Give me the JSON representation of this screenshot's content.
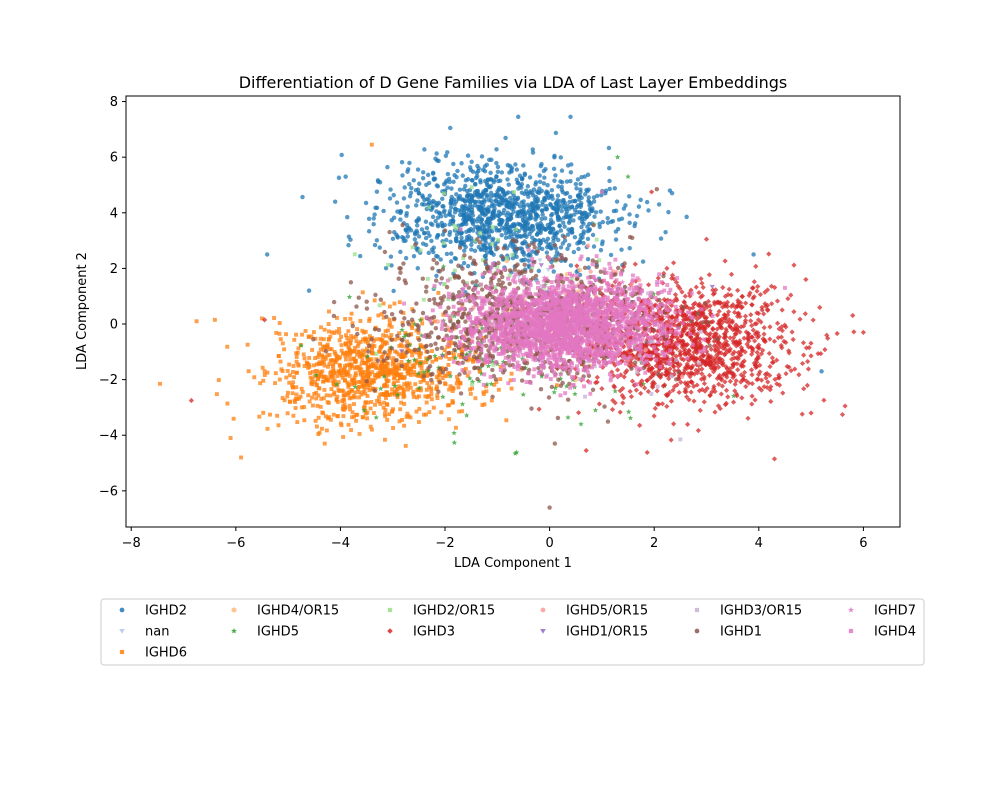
{
  "chart_data": {
    "type": "scatter",
    "title": "Differentiation of D Gene Families via LDA of Last Layer Embeddings",
    "xlabel": "LDA Component 1",
    "ylabel": "LDA Component 2",
    "xlim": [
      -8.1,
      6.7
    ],
    "ylim": [
      -7.3,
      8.2
    ],
    "xticks": [
      -8,
      -6,
      -4,
      -2,
      0,
      2,
      4,
      6
    ],
    "yticks": [
      -6,
      -4,
      -2,
      0,
      2,
      4,
      6,
      8
    ],
    "xtick_labels": [
      "−8",
      "−6",
      "−4",
      "−2",
      "0",
      "2",
      "4",
      "6"
    ],
    "ytick_labels": [
      "−6",
      "−4",
      "−2",
      "0",
      "2",
      "4",
      "6",
      "8"
    ],
    "grid": false,
    "legend_position": "below",
    "legend_columns": 7,
    "series": [
      {
        "name": "IGHD2",
        "color": "#1f77b4",
        "marker": "circle",
        "center": [
          -0.9,
          3.9
        ],
        "spread": [
          1.1,
          0.95
        ],
        "count": 1200,
        "outliers": [
          [
            0.4,
            7.45
          ],
          [
            -0.6,
            7.45
          ],
          [
            -1.9,
            7.05
          ],
          [
            -5.4,
            2.5
          ],
          [
            -4.1,
            4.4
          ],
          [
            5.2,
            -1.7
          ],
          [
            3.9,
            2.5
          ],
          [
            -4.6,
            1.2
          ],
          [
            -3.9,
            5.3
          ],
          [
            2.3,
            4.8
          ]
        ]
      },
      {
        "name": "nan",
        "color": "#aec7e8",
        "marker": "triangle-down",
        "center": [
          0.2,
          0.4
        ],
        "spread": [
          0.8,
          0.8
        ],
        "count": 30,
        "outliers": []
      },
      {
        "name": "IGHD6",
        "color": "#ff7f0e",
        "marker": "square",
        "center": [
          -3.4,
          -1.7
        ],
        "spread": [
          1.0,
          0.85
        ],
        "count": 1000,
        "outliers": [
          [
            -7.45,
            -2.15
          ],
          [
            -6.75,
            0.1
          ],
          [
            -6.4,
            0.15
          ],
          [
            -5.9,
            -4.8
          ],
          [
            -3.4,
            6.45
          ],
          [
            -4.3,
            -4.3
          ],
          [
            -6.1,
            -4.1
          ],
          [
            -5.5,
            0.2
          ]
        ]
      },
      {
        "name": "IGHD4/OR15",
        "color": "#ffbb78",
        "marker": "hexagon",
        "center": [
          -0.3,
          0.2
        ],
        "spread": [
          1.0,
          0.9
        ],
        "count": 40,
        "outliers": []
      },
      {
        "name": "IGHD5",
        "color": "#2ca02c",
        "marker": "star",
        "center": [
          -1.0,
          -1.2
        ],
        "spread": [
          1.5,
          1.4
        ],
        "count": 120,
        "outliers": [
          [
            1.3,
            6.0
          ],
          [
            1.5,
            5.3
          ],
          [
            0.6,
            -3.6
          ]
        ]
      },
      {
        "name": "IGHD2/OR15",
        "color": "#98df8a",
        "marker": "square",
        "center": [
          -1.2,
          2.0
        ],
        "spread": [
          1.3,
          1.5
        ],
        "count": 60,
        "outliers": []
      },
      {
        "name": "IGHD3",
        "color": "#d62728",
        "marker": "diamond",
        "center": [
          2.6,
          -0.7
        ],
        "spread": [
          1.0,
          1.05
        ],
        "count": 1300,
        "outliers": [
          [
            6.0,
            -0.3
          ],
          [
            4.3,
            -4.85
          ],
          [
            -6.85,
            -2.75
          ],
          [
            -5.45,
            0.15
          ],
          [
            5.65,
            -2.95
          ],
          [
            5.0,
            -3.2
          ],
          [
            0.7,
            -4.55
          ],
          [
            1.95,
            4.75
          ],
          [
            4.9,
            1.6
          ],
          [
            3.0,
            3.05
          ]
        ]
      },
      {
        "name": "IGHD5/OR15",
        "color": "#ff9896",
        "marker": "circle",
        "center": [
          0.3,
          0.3
        ],
        "spread": [
          1.1,
          1.0
        ],
        "count": 60,
        "outliers": []
      },
      {
        "name": "IGHD1/OR15",
        "color": "#9467bd",
        "marker": "triangle-down",
        "center": [
          0.0,
          0.5
        ],
        "spread": [
          1.0,
          1.0
        ],
        "count": 40,
        "outliers": []
      },
      {
        "name": "IGHD3/OR15",
        "color": "#c5b0d5",
        "marker": "square",
        "center": [
          1.3,
          -0.7
        ],
        "spread": [
          1.0,
          1.2
        ],
        "count": 40,
        "outliers": [
          [
            2.5,
            -4.15
          ]
        ]
      },
      {
        "name": "IGHD1",
        "color": "#8c564b",
        "marker": "circle",
        "center": [
          -0.6,
          0.1
        ],
        "spread": [
          1.3,
          1.2
        ],
        "count": 900,
        "outliers": [
          [
            0.0,
            -6.6
          ],
          [
            0.1,
            -4.3
          ],
          [
            -3.8,
            1.5
          ],
          [
            2.05,
            4.85
          ]
        ]
      },
      {
        "name": "IGHD7",
        "color": "#e377c2",
        "marker": "star",
        "center": [
          0.2,
          0.3
        ],
        "spread": [
          1.0,
          0.9
        ],
        "count": 80,
        "outliers": []
      },
      {
        "name": "IGHD4",
        "color": "#e377c2",
        "marker": "square",
        "center": [
          0.3,
          0.0
        ],
        "spread": [
          0.95,
          0.8
        ],
        "count": 2000,
        "outliers": [
          [
            4.5,
            1.3
          ],
          [
            1.0,
            4.75
          ],
          [
            -1.7,
            3.4
          ]
        ]
      }
    ]
  }
}
